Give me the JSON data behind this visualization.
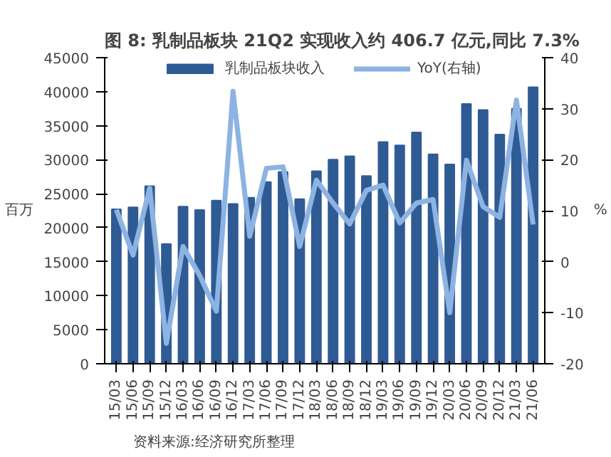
{
  "chart_data": {
    "type": "bar",
    "title": "图 8:  乳制品板块 21Q2 实现收入约 406.7 亿元,同比 7.3%",
    "ylabel": "百万",
    "y2label": "%",
    "categories": [
      "15/03",
      "15/06",
      "15/09",
      "15/12",
      "16/03",
      "16/06",
      "16/09",
      "16/12",
      "17/03",
      "17/06",
      "17/09",
      "17/12",
      "18/03",
      "18/06",
      "18/09",
      "18/12",
      "19/03",
      "19/06",
      "19/09",
      "19/12",
      "20/03",
      "20/06",
      "20/09",
      "20/12",
      "21/03",
      "21/06"
    ],
    "series": [
      {
        "name": "乳制品板块收入",
        "color": "#2f5b94",
        "values": [
          22700,
          23000,
          26100,
          17600,
          23100,
          22600,
          24000,
          23500,
          24400,
          26700,
          28200,
          24200,
          28300,
          30000,
          30500,
          27600,
          32600,
          32100,
          34000,
          30800,
          29300,
          38200,
          37300,
          33700,
          37500,
          40670
        ]
      },
      {
        "name": "YoY(右轴)",
        "type": "line",
        "axis": "y2",
        "color": "#8db3e2",
        "values": [
          10.2,
          1.3,
          14.4,
          -16,
          3,
          -2.7,
          -9.7,
          33.4,
          5,
          18.3,
          18.6,
          3,
          16,
          11.5,
          7.4,
          14,
          15,
          7.6,
          11.5,
          12.2,
          -10,
          19.9,
          10.8,
          8.7,
          31.7,
          7.3
        ]
      }
    ],
    "ylim": [
      0,
      45000
    ],
    "yticks": [
      0,
      5000,
      10000,
      15000,
      20000,
      25000,
      30000,
      35000,
      40000,
      45000
    ],
    "y2lim": [
      -20,
      40
    ],
    "y2ticks": [
      -20,
      -10,
      0,
      10,
      20,
      30,
      40
    ],
    "legend": "top",
    "grid": false,
    "marker": "none",
    "line_style": "solid",
    "annotations": [
      "资料来源:经济研究所整理"
    ]
  }
}
